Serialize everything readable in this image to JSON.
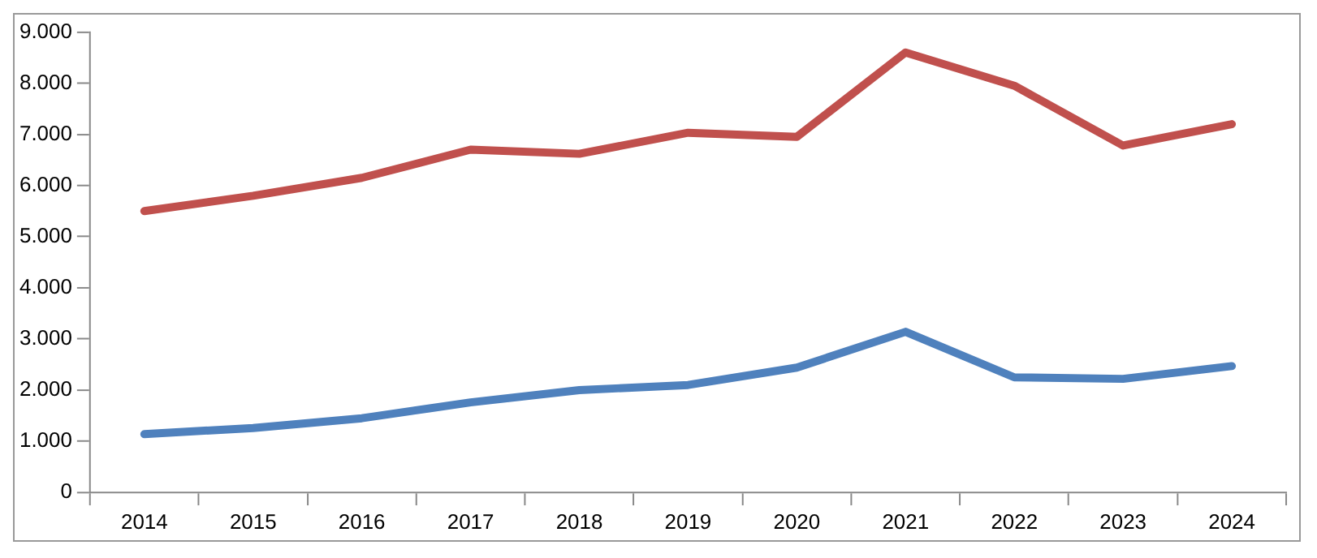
{
  "chart_data": {
    "type": "line",
    "categories": [
      "2014",
      "2015",
      "2016",
      "2017",
      "2018",
      "2019",
      "2020",
      "2021",
      "2022",
      "2023",
      "2024"
    ],
    "series": [
      {
        "color": "#c0504d",
        "values": [
          5500,
          5800,
          6150,
          6700,
          6620,
          7030,
          6950,
          8600,
          7950,
          6780,
          7200
        ]
      },
      {
        "color": "#4f81bd",
        "values": [
          1140,
          1260,
          1450,
          1760,
          2000,
          2100,
          2440,
          3140,
          2250,
          2220,
          2470
        ]
      }
    ],
    "ylim": [
      0,
      9000
    ],
    "yticks": [
      {
        "value": 0,
        "label": "0"
      },
      {
        "value": 1000,
        "label": "1.000"
      },
      {
        "value": 2000,
        "label": "2.000"
      },
      {
        "value": 3000,
        "label": "3.000"
      },
      {
        "value": 4000,
        "label": "4.000"
      },
      {
        "value": 5000,
        "label": "5.000"
      },
      {
        "value": 6000,
        "label": "6.000"
      },
      {
        "value": 7000,
        "label": "7.000"
      },
      {
        "value": 8000,
        "label": "8.000"
      },
      {
        "value": 9000,
        "label": "9.000"
      }
    ],
    "grid": false,
    "legend": false,
    "marker": "none",
    "line_style": "solid"
  }
}
